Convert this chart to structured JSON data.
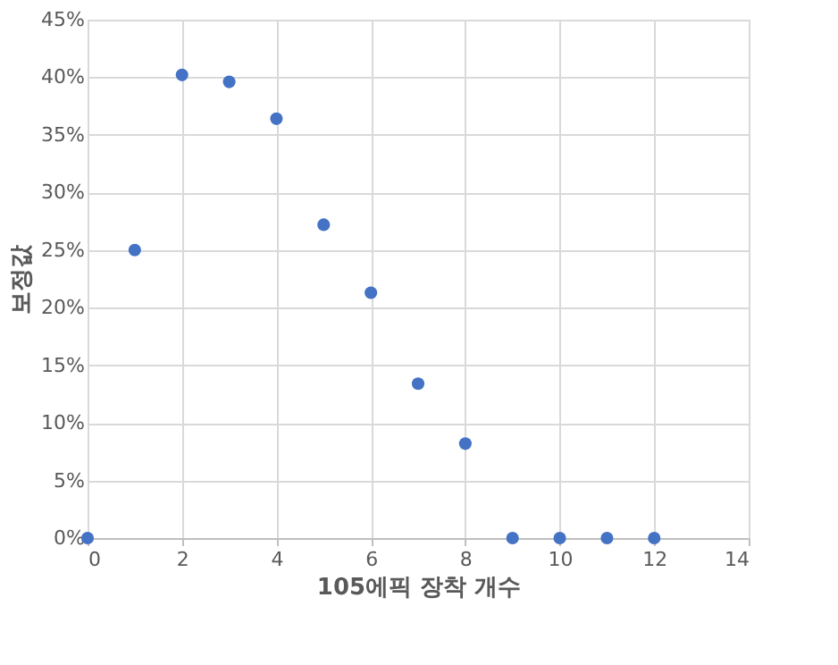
{
  "chart_data": {
    "type": "scatter",
    "xlabel": "105에픽 장착 개수",
    "ylabel": "보정값",
    "x": [
      0,
      1,
      2,
      3,
      4,
      5,
      6,
      7,
      8,
      9,
      10,
      11,
      12
    ],
    "series": [
      {
        "color": "#4472c4",
        "values": [
          0,
          25.0,
          40.2,
          39.6,
          36.4,
          27.2,
          21.3,
          13.4,
          8.2,
          0,
          0,
          0,
          0
        ]
      }
    ],
    "xlim": [
      0,
      14
    ],
    "xticks": [
      0,
      2,
      4,
      6,
      8,
      10,
      12,
      14
    ],
    "ylim": [
      0,
      45
    ],
    "yticks": [
      {
        "value": 0,
        "label": "0%"
      },
      {
        "value": 5,
        "label": "5%"
      },
      {
        "value": 10,
        "label": "10%"
      },
      {
        "value": 15,
        "label": "15%"
      },
      {
        "value": 20,
        "label": "20%"
      },
      {
        "value": 25,
        "label": "25%"
      },
      {
        "value": 30,
        "label": "30%"
      },
      {
        "value": 35,
        "label": "35%"
      },
      {
        "value": 40,
        "label": "40%"
      },
      {
        "value": 45,
        "label": "45%"
      }
    ],
    "grid": true,
    "legend": false,
    "marker": "circle"
  }
}
